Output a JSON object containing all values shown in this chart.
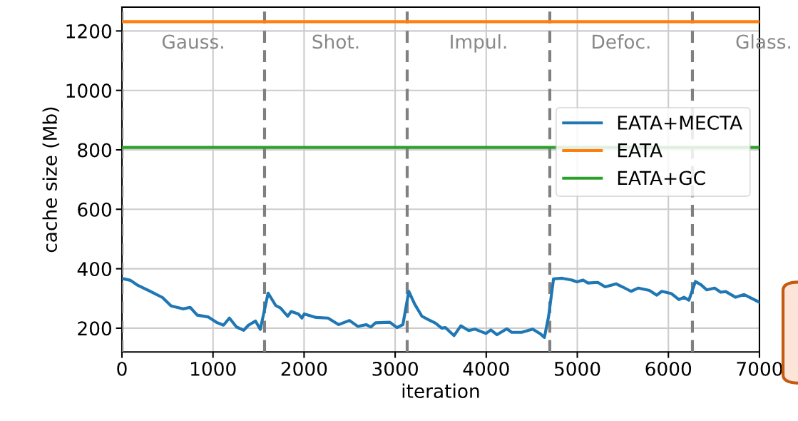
{
  "chart_data": {
    "type": "line",
    "xlabel": "iteration",
    "ylabel": "cache size (Mb)",
    "xlim": [
      0,
      7000
    ],
    "xticks": [
      0,
      1000,
      2000,
      3000,
      4000,
      5000,
      6000,
      7000
    ],
    "ylim": [
      120,
      1280
    ],
    "yticks": [
      200,
      400,
      600,
      800,
      1000,
      1200
    ],
    "grid": true,
    "legend": "right",
    "line_style": "solid",
    "marker": "none",
    "series": [
      {
        "name": "EATA+MECTA",
        "color": "#1f77b4",
        "x": [
          5,
          94,
          175,
          305,
          446,
          540,
          671,
          749,
          827,
          945,
          1036,
          1115,
          1180,
          1258,
          1337,
          1389,
          1467,
          1519,
          1605,
          1689,
          1741,
          1820,
          1858,
          1937,
          1976,
          2002,
          2132,
          2263,
          2380,
          2498,
          2590,
          2681,
          2733,
          2785,
          2942,
          3020,
          3085,
          3150,
          3214,
          3294,
          3375,
          3443,
          3511,
          3551,
          3646,
          3721,
          3807,
          3875,
          3997,
          4051,
          4118,
          4226,
          4280,
          4388,
          4510,
          4590,
          4639,
          4685,
          4739,
          4834,
          4941,
          4996,
          5063,
          5117,
          5225,
          5306,
          5428,
          5495,
          5590,
          5671,
          5792,
          5873,
          5927,
          6035,
          6116,
          6171,
          6225,
          6297,
          6359,
          6421,
          6507,
          6575,
          6630,
          6738,
          6832,
          6994
        ],
        "values": [
          367,
          361,
          344,
          325,
          303,
          275,
          265,
          270,
          244,
          238,
          220,
          210,
          234,
          204,
          193,
          210,
          224,
          196,
          318,
          276,
          268,
          240,
          256,
          248,
          234,
          248,
          236,
          234,
          212,
          226,
          206,
          212,
          204,
          218,
          220,
          202,
          212,
          324,
          281,
          240,
          227,
          217,
          200,
          202,
          175,
          208,
          192,
          197,
          182,
          194,
          178,
          198,
          186,
          186,
          197,
          182,
          169,
          240,
          366,
          368,
          362,
          356,
          362,
          352,
          354,
          339,
          349,
          339,
          324,
          335,
          327,
          311,
          324,
          316,
          296,
          304,
          294,
          357,
          346,
          329,
          335,
          321,
          323,
          304,
          313,
          288
        ]
      },
      {
        "name": "EATA",
        "color": "#ff7f0e",
        "x": [
          0,
          7000
        ],
        "values": [
          1231,
          1231
        ]
      },
      {
        "name": "EATA+GC",
        "color": "#2ca02c",
        "x": [
          0,
          7000
        ],
        "values": [
          808,
          808
        ]
      }
    ],
    "ref_lines": [
      {
        "axis": "x",
        "value": 0,
        "color": "#808080",
        "line_style": "dashed"
      },
      {
        "axis": "x",
        "value": 1566,
        "color": "#808080",
        "line_style": "dashed"
      },
      {
        "axis": "x",
        "value": 3132,
        "color": "#808080",
        "line_style": "dashed"
      },
      {
        "axis": "x",
        "value": 4698,
        "color": "#808080",
        "line_style": "dashed"
      },
      {
        "axis": "x",
        "value": 6264,
        "color": "#808080",
        "line_style": "dashed"
      }
    ],
    "annotations": [
      "Gauss.",
      "Shot.",
      "Impul.",
      "Defoc.",
      "Glass."
    ]
  }
}
